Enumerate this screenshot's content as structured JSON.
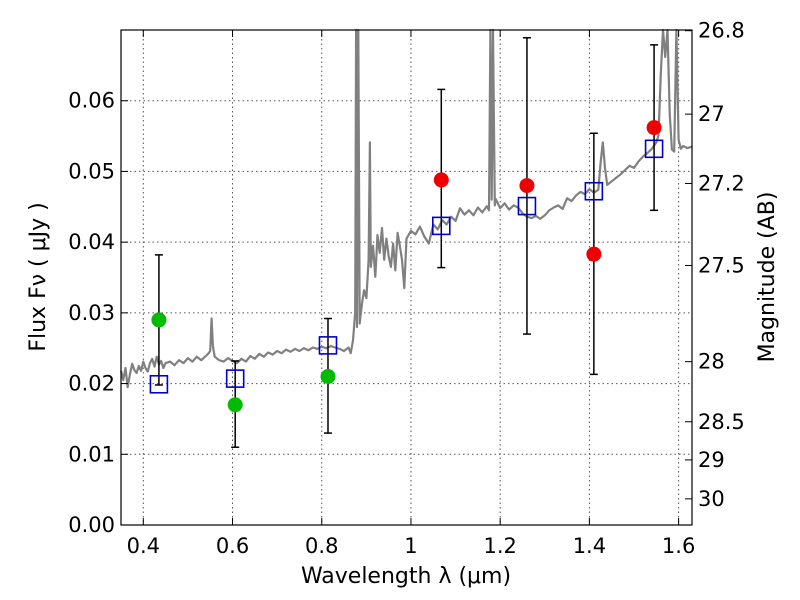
{
  "chart_data": {
    "type": "scatter",
    "xlabel": "Wavelength  λ (μm)",
    "ylabel": "Flux  Fν  ( μJy )",
    "ylabel_right": "Magnitude (AB)",
    "xlim": [
      0.35,
      1.63
    ],
    "ylim": [
      0.0,
      0.07
    ],
    "grid": true,
    "xticks": [
      0.4,
      0.6,
      0.8,
      1.0,
      1.2,
      1.4,
      1.6
    ],
    "xtick_labels": [
      "0.4",
      "0.6",
      "0.8",
      "1",
      "1.2",
      "1.4",
      "1.6"
    ],
    "yticks": [
      0.0,
      0.01,
      0.02,
      0.03,
      0.04,
      0.05,
      0.06
    ],
    "ytick_labels": [
      "0.00",
      "0.01",
      "0.02",
      "0.03",
      "0.04",
      "0.05",
      "0.06"
    ],
    "right_ticks": [
      {
        "label": "26.8",
        "flux": 0.0699
      },
      {
        "label": "27",
        "flux": 0.0581
      },
      {
        "label": "27.2",
        "flux": 0.0483
      },
      {
        "label": "27.5",
        "flux": 0.0367
      },
      {
        "label": "28",
        "flux": 0.0231
      },
      {
        "label": "28.5",
        "flux": 0.0146
      },
      {
        "label": "29",
        "flux": 0.0092
      },
      {
        "label": "30",
        "flux": 0.0037
      }
    ],
    "series": [
      {
        "marker": "circle",
        "color": "#00bb00",
        "points": [
          {
            "x": 0.435,
            "y": 0.029
          },
          {
            "x": 0.606,
            "y": 0.017
          },
          {
            "x": 0.814,
            "y": 0.021
          }
        ]
      },
      {
        "marker": "circle",
        "color": "#ee0000",
        "points": [
          {
            "x": 1.068,
            "y": 0.0488
          },
          {
            "x": 1.26,
            "y": 0.048
          },
          {
            "x": 1.41,
            "y": 0.0383
          },
          {
            "x": 1.545,
            "y": 0.0562
          }
        ]
      },
      {
        "marker": "open-square",
        "color": "#0000cc",
        "points": [
          {
            "x": 0.435,
            "y": 0.0199
          },
          {
            "x": 0.606,
            "y": 0.0207
          },
          {
            "x": 0.814,
            "y": 0.0254
          },
          {
            "x": 1.068,
            "y": 0.0423
          },
          {
            "x": 1.26,
            "y": 0.0451
          },
          {
            "x": 1.41,
            "y": 0.0472
          },
          {
            "x": 1.545,
            "y": 0.0532
          }
        ]
      }
    ],
    "error_bars": [
      {
        "x": 0.435,
        "low": 0.0198,
        "high": 0.0382
      },
      {
        "x": 0.606,
        "low": 0.011,
        "high": 0.0232
      },
      {
        "x": 0.814,
        "low": 0.013,
        "high": 0.0292
      },
      {
        "x": 1.068,
        "low": 0.0364,
        "high": 0.0616
      },
      {
        "x": 1.26,
        "low": 0.027,
        "high": 0.0689
      },
      {
        "x": 1.41,
        "low": 0.0213,
        "high": 0.0554
      },
      {
        "x": 1.545,
        "low": 0.0445,
        "high": 0.0679
      }
    ],
    "sed_color": "#808080",
    "sed": [
      [
        0.35,
        0.0218
      ],
      [
        0.355,
        0.0205
      ],
      [
        0.36,
        0.0222
      ],
      [
        0.365,
        0.0195
      ],
      [
        0.37,
        0.0213
      ],
      [
        0.375,
        0.0228
      ],
      [
        0.38,
        0.0219
      ],
      [
        0.385,
        0.0215
      ],
      [
        0.39,
        0.0225
      ],
      [
        0.395,
        0.0218
      ],
      [
        0.4,
        0.0231
      ],
      [
        0.405,
        0.0222
      ],
      [
        0.41,
        0.0217
      ],
      [
        0.415,
        0.0229
      ],
      [
        0.42,
        0.0235
      ],
      [
        0.425,
        0.0224
      ],
      [
        0.43,
        0.0238
      ],
      [
        0.435,
        0.0227
      ],
      [
        0.44,
        0.0232
      ],
      [
        0.445,
        0.0222
      ],
      [
        0.45,
        0.0229
      ],
      [
        0.46,
        0.0231
      ],
      [
        0.47,
        0.0226
      ],
      [
        0.48,
        0.0233
      ],
      [
        0.49,
        0.0229
      ],
      [
        0.5,
        0.0236
      ],
      [
        0.51,
        0.0231
      ],
      [
        0.52,
        0.0238
      ],
      [
        0.53,
        0.0233
      ],
      [
        0.54,
        0.0239
      ],
      [
        0.545,
        0.0242
      ],
      [
        0.55,
        0.0246
      ],
      [
        0.553,
        0.0292
      ],
      [
        0.556,
        0.0253
      ],
      [
        0.56,
        0.0238
      ],
      [
        0.57,
        0.0233
      ],
      [
        0.58,
        0.0231
      ],
      [
        0.59,
        0.0236
      ],
      [
        0.6,
        0.0232
      ],
      [
        0.61,
        0.0229
      ],
      [
        0.62,
        0.0235
      ],
      [
        0.63,
        0.0231
      ],
      [
        0.64,
        0.0239
      ],
      [
        0.65,
        0.0235
      ],
      [
        0.66,
        0.0242
      ],
      [
        0.67,
        0.0238
      ],
      [
        0.68,
        0.0244
      ],
      [
        0.69,
        0.0241
      ],
      [
        0.7,
        0.0246
      ],
      [
        0.71,
        0.0243
      ],
      [
        0.72,
        0.0248
      ],
      [
        0.73,
        0.0245
      ],
      [
        0.74,
        0.0249
      ],
      [
        0.75,
        0.0246
      ],
      [
        0.76,
        0.025
      ],
      [
        0.77,
        0.0247
      ],
      [
        0.78,
        0.0251
      ],
      [
        0.79,
        0.0249
      ],
      [
        0.8,
        0.0252
      ],
      [
        0.81,
        0.025
      ],
      [
        0.82,
        0.0253
      ],
      [
        0.83,
        0.0251
      ],
      [
        0.84,
        0.0249
      ],
      [
        0.85,
        0.0246
      ],
      [
        0.86,
        0.0251
      ],
      [
        0.865,
        0.0243
      ],
      [
        0.87,
        0.0261
      ],
      [
        0.875,
        0.0301
      ],
      [
        0.877,
        0.0705
      ],
      [
        0.879,
        0.028
      ],
      [
        0.882,
        0.0705
      ],
      [
        0.885,
        0.0285
      ],
      [
        0.89,
        0.0313
      ],
      [
        0.895,
        0.0332
      ],
      [
        0.9,
        0.0321
      ],
      [
        0.905,
        0.0375
      ],
      [
        0.908,
        0.0541
      ],
      [
        0.91,
        0.0365
      ],
      [
        0.915,
        0.0395
      ],
      [
        0.92,
        0.0351
      ],
      [
        0.925,
        0.041
      ],
      [
        0.93,
        0.0385
      ],
      [
        0.935,
        0.042
      ],
      [
        0.94,
        0.0375
      ],
      [
        0.945,
        0.0405
      ],
      [
        0.95,
        0.038
      ],
      [
        0.955,
        0.0365
      ],
      [
        0.96,
        0.0398
      ],
      [
        0.965,
        0.036
      ],
      [
        0.97,
        0.0413
      ],
      [
        0.975,
        0.0395
      ],
      [
        0.98,
        0.0375
      ],
      [
        0.985,
        0.0335
      ],
      [
        0.99,
        0.0405
      ],
      [
        1.0,
        0.0416
      ],
      [
        1.01,
        0.0411
      ],
      [
        1.02,
        0.0422
      ],
      [
        1.03,
        0.0408
      ],
      [
        1.04,
        0.0398
      ],
      [
        1.05,
        0.0425
      ],
      [
        1.06,
        0.0418
      ],
      [
        1.07,
        0.0431
      ],
      [
        1.08,
        0.0425
      ],
      [
        1.09,
        0.0436
      ],
      [
        1.1,
        0.043
      ],
      [
        1.11,
        0.0448
      ],
      [
        1.12,
        0.0439
      ],
      [
        1.13,
        0.0445
      ],
      [
        1.14,
        0.0438
      ],
      [
        1.15,
        0.0449
      ],
      [
        1.16,
        0.0442
      ],
      [
        1.17,
        0.0451
      ],
      [
        1.175,
        0.0445
      ],
      [
        1.178,
        0.0705
      ],
      [
        1.181,
        0.046
      ],
      [
        1.184,
        0.0705
      ],
      [
        1.188,
        0.0452
      ],
      [
        1.19,
        0.0461
      ],
      [
        1.2,
        0.0448
      ],
      [
        1.21,
        0.0455
      ],
      [
        1.22,
        0.0446
      ],
      [
        1.23,
        0.0452
      ],
      [
        1.24,
        0.0449
      ],
      [
        1.25,
        0.0441
      ],
      [
        1.26,
        0.0436
      ],
      [
        1.27,
        0.0434
      ],
      [
        1.28,
        0.0437
      ],
      [
        1.29,
        0.0433
      ],
      [
        1.3,
        0.0438
      ],
      [
        1.31,
        0.0445
      ],
      [
        1.32,
        0.0449
      ],
      [
        1.33,
        0.0452
      ],
      [
        1.34,
        0.0447
      ],
      [
        1.35,
        0.0462
      ],
      [
        1.36,
        0.0458
      ],
      [
        1.37,
        0.0466
      ],
      [
        1.38,
        0.0471
      ],
      [
        1.39,
        0.0468
      ],
      [
        1.4,
        0.0475
      ],
      [
        1.41,
        0.047
      ],
      [
        1.42,
        0.0474
      ],
      [
        1.425,
        0.0512
      ],
      [
        1.43,
        0.0541
      ],
      [
        1.435,
        0.0505
      ],
      [
        1.44,
        0.0481
      ],
      [
        1.45,
        0.0486
      ],
      [
        1.46,
        0.0491
      ],
      [
        1.47,
        0.0496
      ],
      [
        1.48,
        0.0502
      ],
      [
        1.49,
        0.0508
      ],
      [
        1.5,
        0.0505
      ],
      [
        1.51,
        0.0514
      ],
      [
        1.52,
        0.0521
      ],
      [
        1.53,
        0.0526
      ],
      [
        1.54,
        0.0532
      ],
      [
        1.55,
        0.0541
      ],
      [
        1.555,
        0.0551
      ],
      [
        1.56,
        0.0638
      ],
      [
        1.565,
        0.0705
      ],
      [
        1.57,
        0.0662
      ],
      [
        1.575,
        0.0705
      ],
      [
        1.58,
        0.0582
      ],
      [
        1.585,
        0.0531
      ],
      [
        1.59,
        0.0528
      ],
      [
        1.595,
        0.0705
      ],
      [
        1.6,
        0.0545
      ],
      [
        1.605,
        0.0532
      ],
      [
        1.61,
        0.0536
      ],
      [
        1.62,
        0.0533
      ],
      [
        1.63,
        0.0535
      ]
    ]
  }
}
